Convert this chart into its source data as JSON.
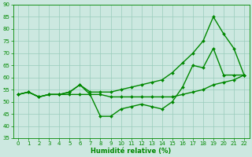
{
  "title": "",
  "xlabel": "Humidité relative (%)",
  "ylabel": "",
  "bg_color": "#cce8e0",
  "grid_color": "#99ccbb",
  "line_color": "#008800",
  "xlim": [
    -0.5,
    22.5
  ],
  "ylim": [
    35,
    90
  ],
  "yticks": [
    35,
    40,
    45,
    50,
    55,
    60,
    65,
    70,
    75,
    80,
    85,
    90
  ],
  "xticks": [
    0,
    1,
    2,
    3,
    4,
    5,
    6,
    7,
    8,
    9,
    10,
    11,
    12,
    13,
    14,
    15,
    16,
    17,
    18,
    19,
    20,
    21,
    22
  ],
  "line1_x": [
    0,
    1,
    2,
    3,
    4,
    5,
    6,
    7,
    8,
    9,
    10,
    11,
    12,
    13,
    14,
    15,
    16,
    17,
    18,
    19,
    20,
    21,
    22
  ],
  "line1_y": [
    53,
    54,
    52,
    53,
    53,
    54,
    57,
    54,
    54,
    54,
    55,
    56,
    57,
    58,
    59,
    62,
    66,
    70,
    75,
    85,
    78,
    72,
    61
  ],
  "line2_x": [
    0,
    1,
    2,
    3,
    4,
    5,
    6,
    7,
    8,
    9,
    10,
    11,
    12,
    13,
    14,
    15,
    16,
    17,
    18,
    19,
    20,
    21,
    22
  ],
  "line2_y": [
    53,
    54,
    52,
    53,
    53,
    54,
    57,
    53,
    44,
    44,
    47,
    48,
    49,
    48,
    47,
    50,
    56,
    65,
    64,
    72,
    61,
    61,
    61
  ],
  "line3_x": [
    0,
    1,
    2,
    3,
    4,
    5,
    6,
    7,
    8,
    9,
    10,
    11,
    12,
    13,
    14,
    15,
    16,
    17,
    18,
    19,
    20,
    21,
    22
  ],
  "line3_y": [
    53,
    54,
    52,
    53,
    53,
    53,
    53,
    53,
    53,
    52,
    52,
    52,
    52,
    52,
    52,
    52,
    53,
    54,
    55,
    57,
    58,
    59,
    61
  ],
  "marker": "D",
  "markersize": 2.0,
  "linewidth": 1.0,
  "xlabel_fontsize": 6.0,
  "tick_labelsize": 5.0
}
